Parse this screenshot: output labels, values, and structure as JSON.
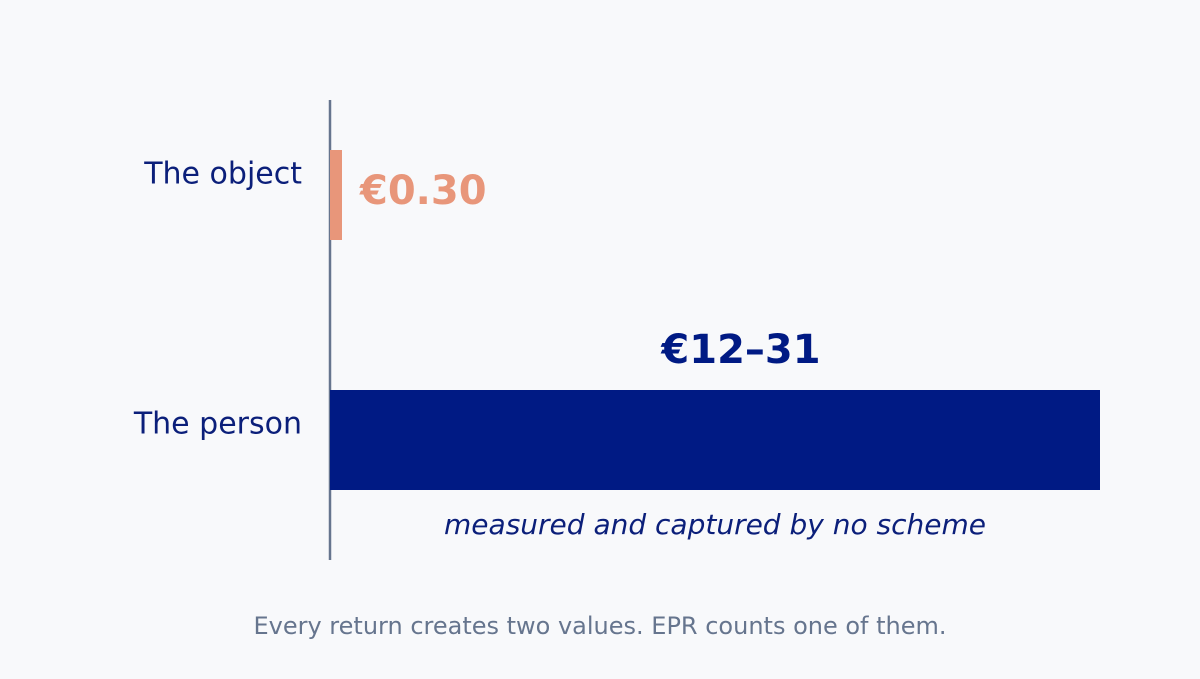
{
  "chart_data": {
    "type": "bar",
    "orientation": "horizontal",
    "categories": [
      "The object",
      "The person"
    ],
    "values": [
      0.3,
      31
    ],
    "value_labels": [
      "€0.30",
      "€12–31"
    ],
    "colors": [
      "#e8967a",
      "#001a84"
    ],
    "xlim": [
      0,
      31
    ],
    "annotation": "measured and captured by no scheme",
    "caption": "Every return creates two values. EPR counts one of them."
  }
}
